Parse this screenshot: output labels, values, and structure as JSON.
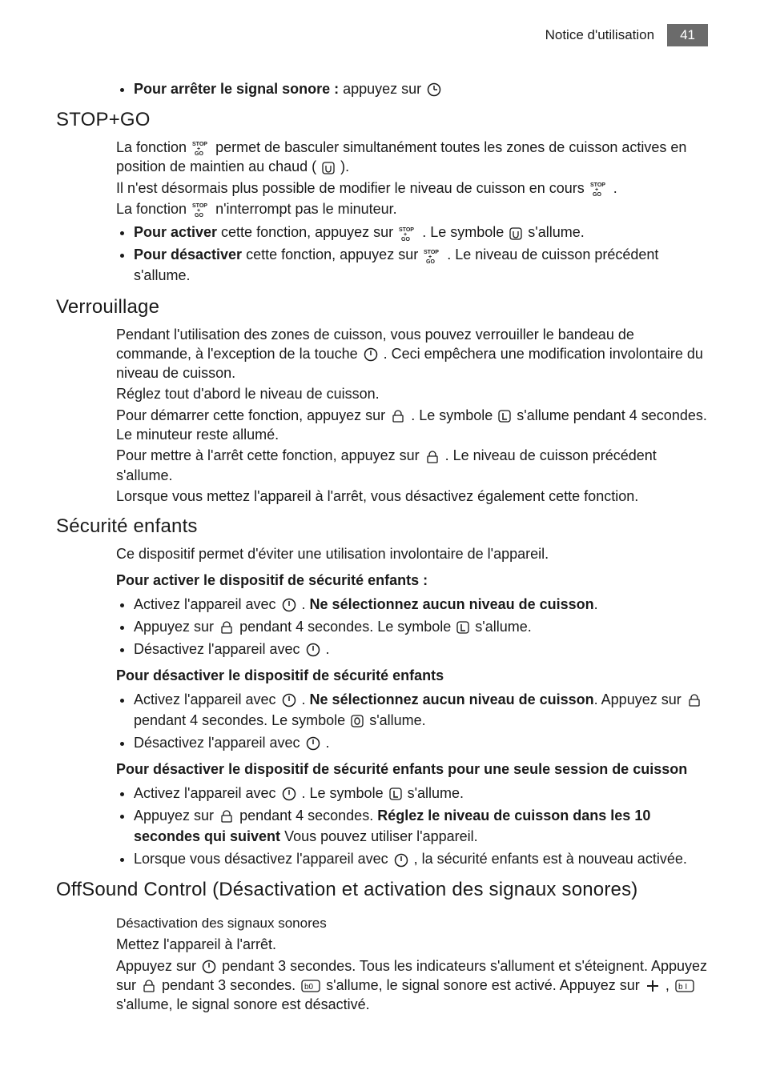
{
  "header": {
    "doc_title": "Notice d'utilisation",
    "page_number": "41"
  },
  "intro_bullets": [
    {
      "prefix_bold": "Pour arrêter le signal sonore : ",
      "rest": "appuyez sur ",
      "icon": "clock"
    }
  ],
  "sections": [
    {
      "title": "STOP+GO",
      "paras": [
        {
          "runs": [
            {
              "t": "La fonction "
            },
            {
              "icon": "stopgo"
            },
            {
              "t": " permet de basculer simultanément toutes les zones de cuisson actives en position de maintien au chaud ( "
            },
            {
              "icon": "box-u"
            },
            {
              "t": " )."
            }
          ]
        },
        {
          "runs": [
            {
              "t": "Il n'est désormais plus possible de modifier le niveau de cuisson en cours "
            },
            {
              "icon": "stopgo"
            },
            {
              "t": " ."
            }
          ]
        },
        {
          "runs": [
            {
              "t": "La fonction "
            },
            {
              "icon": "stopgo"
            },
            {
              "t": " n'interrompt pas le minuteur."
            }
          ]
        }
      ],
      "bullets": [
        {
          "runs": [
            {
              "bold": "Pour activer"
            },
            {
              "t": " cette fonction, appuyez sur "
            },
            {
              "icon": "stopgo"
            },
            {
              "t": " . Le symbole "
            },
            {
              "icon": "box-u"
            },
            {
              "t": " s'allume."
            }
          ]
        },
        {
          "runs": [
            {
              "bold": "Pour désactiver"
            },
            {
              "t": " cette fonction, appuyez sur "
            },
            {
              "icon": "stopgo"
            },
            {
              "t": " . Le niveau de cuisson précédent s'allume."
            }
          ]
        }
      ]
    },
    {
      "title": "Verrouillage",
      "paras": [
        {
          "runs": [
            {
              "t": "Pendant l'utilisation des zones de cuisson, vous pouvez verrouiller le bandeau de commande, à l'exception de la touche "
            },
            {
              "icon": "power"
            },
            {
              "t": " . Ceci empêchera une modification involontaire du niveau de cuisson."
            }
          ]
        },
        {
          "runs": [
            {
              "t": "Réglez tout d'abord le niveau de cuisson."
            }
          ]
        },
        {
          "runs": [
            {
              "t": "Pour démarrer cette fonction, appuyez sur "
            },
            {
              "icon": "lock"
            },
            {
              "t": " . Le symbole "
            },
            {
              "icon": "box-L"
            },
            {
              "t": " s'allume pendant 4 secondes. Le minuteur reste allumé."
            }
          ]
        },
        {
          "runs": [
            {
              "t": "Pour mettre à l'arrêt cette fonction, appuyez sur "
            },
            {
              "icon": "lock"
            },
            {
              "t": " . Le niveau de cuisson précédent s'allume."
            }
          ]
        },
        {
          "runs": [
            {
              "t": "Lorsque vous mettez l'appareil à l'arrêt, vous désactivez également cette fonction."
            }
          ]
        }
      ]
    },
    {
      "title": "Sécurité enfants",
      "paras": [
        {
          "runs": [
            {
              "t": "Ce dispositif permet d'éviter une utilisation involontaire de l'appareil."
            }
          ]
        }
      ],
      "groups": [
        {
          "subtitle": "Pour activer le dispositif de sécurité enfants :",
          "bullets": [
            {
              "runs": [
                {
                  "t": "Activez l'appareil avec "
                },
                {
                  "icon": "power"
                },
                {
                  "t": " . "
                },
                {
                  "bold": "Ne sélectionnez aucun niveau de cuisson"
                },
                {
                  "t": "."
                }
              ]
            },
            {
              "runs": [
                {
                  "t": "Appuyez sur "
                },
                {
                  "icon": "lock"
                },
                {
                  "t": " pendant 4 secondes. Le symbole "
                },
                {
                  "icon": "box-L"
                },
                {
                  "t": " s'allume."
                }
              ]
            },
            {
              "runs": [
                {
                  "t": "Désactivez l'appareil avec "
                },
                {
                  "icon": "power"
                },
                {
                  "t": " ."
                }
              ]
            }
          ]
        },
        {
          "subtitle": "Pour désactiver le dispositif de sécurité enfants",
          "bullets": [
            {
              "runs": [
                {
                  "t": "Activez l'appareil avec "
                },
                {
                  "icon": "power"
                },
                {
                  "t": " . "
                },
                {
                  "bold": "Ne sélectionnez aucun niveau de cuisson"
                },
                {
                  "t": ". Appuyez sur "
                },
                {
                  "icon": "lock"
                },
                {
                  "t": " pendant 4 secondes. Le symbole "
                },
                {
                  "icon": "box-0"
                },
                {
                  "t": " s'allume."
                }
              ]
            },
            {
              "runs": [
                {
                  "t": "Désactivez l'appareil avec "
                },
                {
                  "icon": "power"
                },
                {
                  "t": " ."
                }
              ]
            }
          ]
        },
        {
          "subtitle": "Pour désactiver le dispositif de sécurité enfants pour une seule session de cuisson",
          "bullets": [
            {
              "runs": [
                {
                  "t": "Activez l'appareil avec "
                },
                {
                  "icon": "power"
                },
                {
                  "t": " . Le symbole "
                },
                {
                  "icon": "box-L"
                },
                {
                  "t": " s'allume."
                }
              ]
            },
            {
              "runs": [
                {
                  "t": "Appuyez sur "
                },
                {
                  "icon": "lock"
                },
                {
                  "t": " pendant 4 secondes. "
                },
                {
                  "bold": "Réglez le niveau de cuisson dans les 10 secondes qui suivent"
                },
                {
                  "t": " Vous pouvez utiliser l'appareil."
                }
              ]
            },
            {
              "runs": [
                {
                  "t": "Lorsque vous désactivez l'appareil avec "
                },
                {
                  "icon": "power"
                },
                {
                  "t": " , la sécurité enfants est à nouveau activée."
                }
              ]
            }
          ]
        }
      ]
    },
    {
      "title": "OffSound Control (Désactivation et activation des signaux sonores)",
      "sub_h3": "Désactivation des signaux sonores",
      "paras": [
        {
          "runs": [
            {
              "t": "Mettez l'appareil à l'arrêt."
            }
          ]
        },
        {
          "runs": [
            {
              "t": "Appuyez sur "
            },
            {
              "icon": "power"
            },
            {
              "t": " pendant 3 secondes. Tous les indicateurs s'allument et s'éteignent. Appuyez sur "
            },
            {
              "icon": "lock"
            },
            {
              "t": " pendant 3 secondes. "
            },
            {
              "icon": "box-b0"
            },
            {
              "t": " s'allume, le signal sonore est activé. Appuyez sur "
            },
            {
              "icon": "plus"
            },
            {
              "t": " , "
            },
            {
              "icon": "box-b1"
            },
            {
              "t": " s'allume, le signal sonore est désactivé."
            }
          ]
        }
      ]
    }
  ],
  "style": {
    "text_color": "#1a1a1a",
    "badge_bg": "#6b6b6b",
    "badge_fg": "#ffffff",
    "body_fontsize": 18,
    "h2_fontsize": 24,
    "h3_fontsize": 17,
    "sub_bold_fontsize": 18,
    "icon_stroke": "#1a1a1a"
  }
}
